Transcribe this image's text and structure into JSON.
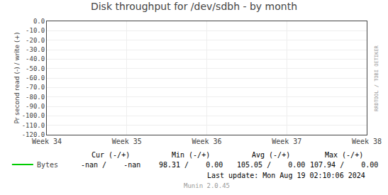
{
  "chart_data": {
    "type": "line",
    "title": "Disk throughput for /dev/sdbh - by month",
    "ylabel": "Pr second read (-) / write (+)",
    "categories": [
      "Week 34",
      "Week 35",
      "Week 36",
      "Week 37",
      "Week 38"
    ],
    "series": [
      {
        "name": "Bytes",
        "color": "#00cc00",
        "values": [
          null,
          null,
          null,
          null,
          null
        ]
      }
    ],
    "ylim": [
      -120,
      0
    ],
    "yticks": [
      {
        "value": 0,
        "label": "0.0"
      },
      {
        "value": -10,
        "label": "-10.0"
      },
      {
        "value": -20,
        "label": "-20.0"
      },
      {
        "value": -30,
        "label": "-30.0"
      },
      {
        "value": -40,
        "label": "-40.0"
      },
      {
        "value": -50,
        "label": "-50.0"
      },
      {
        "value": -60,
        "label": "-60.0"
      },
      {
        "value": -70,
        "label": "-70.0"
      },
      {
        "value": -80,
        "label": "-80.0"
      },
      {
        "value": -90,
        "label": "-90.0"
      },
      {
        "value": -100,
        "label": "-100.0"
      },
      {
        "value": -110,
        "label": "-110.0"
      },
      {
        "value": -120,
        "label": "-120.0"
      }
    ],
    "grid": true,
    "legend": "bottom",
    "annotations": [
      "Cur (-/+)",
      "Min (-/+)",
      "Avg (-/+)",
      "Max (-/+)",
      "-nan /    -nan",
      "98.31 /    0.00",
      "105.05 /    0.00",
      "107.94 /    0.00",
      "Last update: Mon Aug 19 02:10:06 2024",
      "Munin 2.0.45",
      "RRDTOOL / TOBI OETIKER"
    ]
  }
}
